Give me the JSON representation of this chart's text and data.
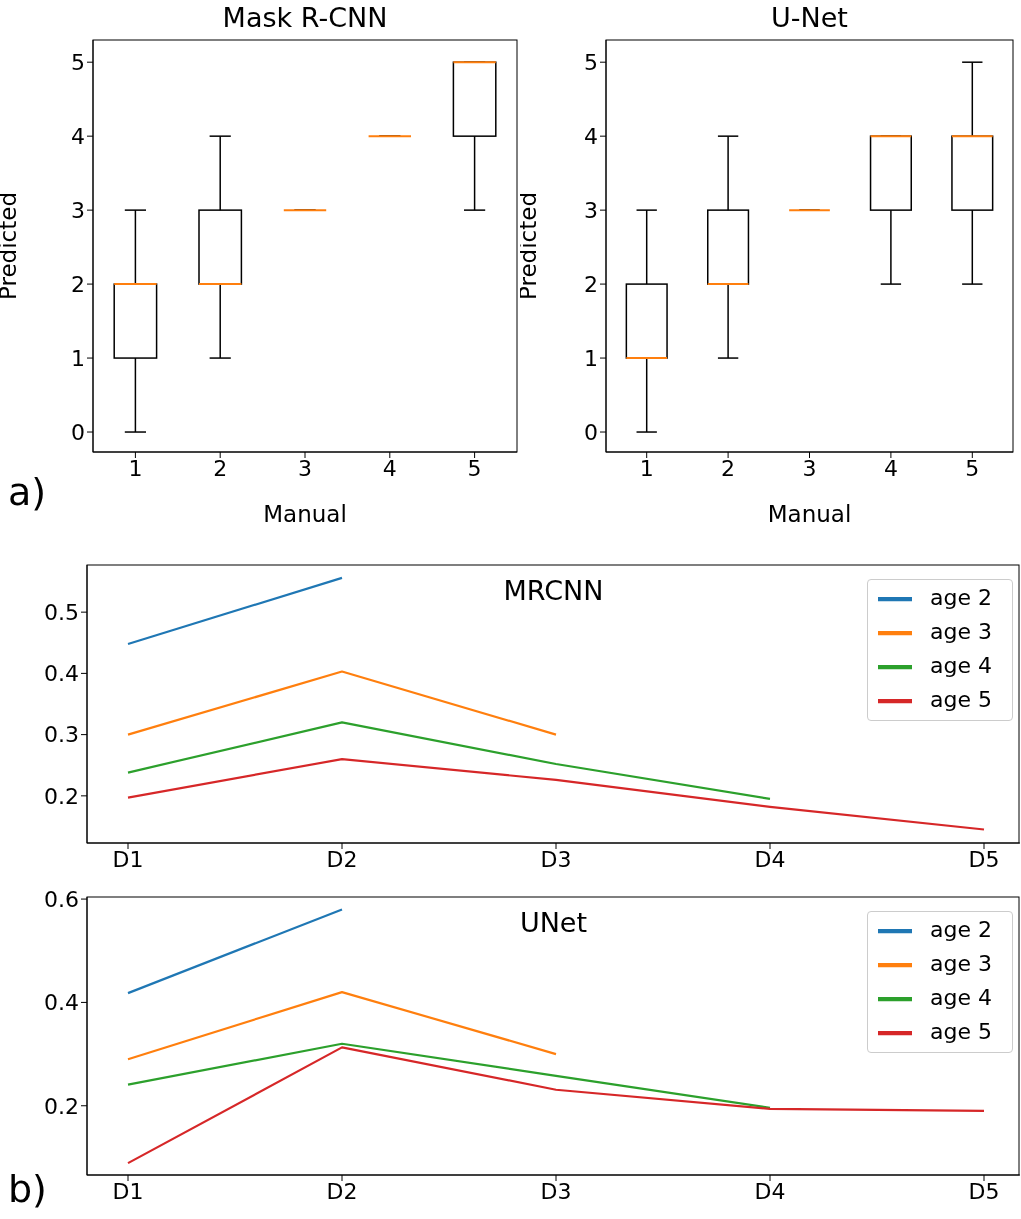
{
  "chart_data": [
    {
      "type": "box",
      "title": "Mask R-CNN",
      "xlabel": "Manual",
      "ylabel": "Predicted",
      "categories": [
        "1",
        "2",
        "3",
        "4",
        "5"
      ],
      "ylim": [
        -0.27,
        5.3
      ],
      "yticks": [
        0,
        1,
        2,
        3,
        4,
        5
      ],
      "annotations": [
        "a)"
      ],
      "boxes": [
        {
          "low": 0,
          "q1": 1,
          "median": 2,
          "q3": 2,
          "high": 3
        },
        {
          "low": 1,
          "q1": 2,
          "median": 2,
          "q3": 3,
          "high": 4
        },
        {
          "low": 3,
          "q1": 3,
          "median": 3,
          "q3": 3,
          "high": 3
        },
        {
          "low": 4,
          "q1": 4,
          "median": 4,
          "q3": 4,
          "high": 4
        },
        {
          "low": 3,
          "q1": 4,
          "median": 5,
          "q3": 5,
          "high": 5
        }
      ]
    },
    {
      "type": "box",
      "title": "U-Net",
      "xlabel": "Manual",
      "ylabel": "Predicted",
      "categories": [
        "1",
        "2",
        "3",
        "4",
        "5"
      ],
      "ylim": [
        -0.27,
        5.3
      ],
      "yticks": [
        0,
        1,
        2,
        3,
        4,
        5
      ],
      "boxes": [
        {
          "low": 0,
          "q1": 1,
          "median": 1,
          "q3": 2,
          "high": 3
        },
        {
          "low": 1,
          "q1": 2,
          "median": 2,
          "q3": 3,
          "high": 4
        },
        {
          "low": 3,
          "q1": 3,
          "median": 3,
          "q3": 3,
          "high": 3
        },
        {
          "low": 2,
          "q1": 3,
          "median": 4,
          "q3": 4,
          "high": 4
        },
        {
          "low": 2,
          "q1": 3,
          "median": 4,
          "q3": 4,
          "high": 5
        }
      ]
    },
    {
      "type": "line",
      "title": "MRCNN",
      "categories": [
        "D1",
        "D2",
        "D3",
        "D4",
        "D5"
      ],
      "ylim": [
        0.123,
        0.577
      ],
      "yticks": [
        0.2,
        0.3,
        0.4,
        0.5
      ],
      "legend": "top right",
      "series": [
        {
          "name": "age 2",
          "color": "#1f77b4",
          "values": [
            0.448,
            0.556,
            null,
            null,
            null
          ]
        },
        {
          "name": "age 3",
          "color": "#ff7f0e",
          "values": [
            0.3,
            0.403,
            0.3,
            null,
            null
          ]
        },
        {
          "name": "age 4",
          "color": "#2ca02c",
          "values": [
            0.238,
            0.32,
            0.252,
            0.195,
            null
          ]
        },
        {
          "name": "age 5",
          "color": "#d62728",
          "values": [
            0.197,
            0.26,
            0.226,
            0.182,
            0.145
          ]
        }
      ]
    },
    {
      "type": "line",
      "title": "UNet",
      "categories": [
        "D1",
        "D2",
        "D3",
        "D4",
        "D5"
      ],
      "ylim": [
        0.066,
        0.604
      ],
      "yticks": [
        0.2,
        0.4,
        0.6
      ],
      "legend": "top right",
      "annotations": [
        "b)"
      ],
      "series": [
        {
          "name": "age 2",
          "color": "#1f77b4",
          "values": [
            0.418,
            0.58,
            null,
            null,
            null
          ]
        },
        {
          "name": "age 3",
          "color": "#ff7f0e",
          "values": [
            0.29,
            0.42,
            0.3,
            null,
            null
          ]
        },
        {
          "name": "age 4",
          "color": "#2ca02c",
          "values": [
            0.241,
            0.32,
            0.258,
            0.196,
            null
          ]
        },
        {
          "name": "age 5",
          "color": "#d62728",
          "values": [
            0.089,
            0.313,
            0.231,
            0.194,
            0.19
          ]
        }
      ]
    }
  ]
}
